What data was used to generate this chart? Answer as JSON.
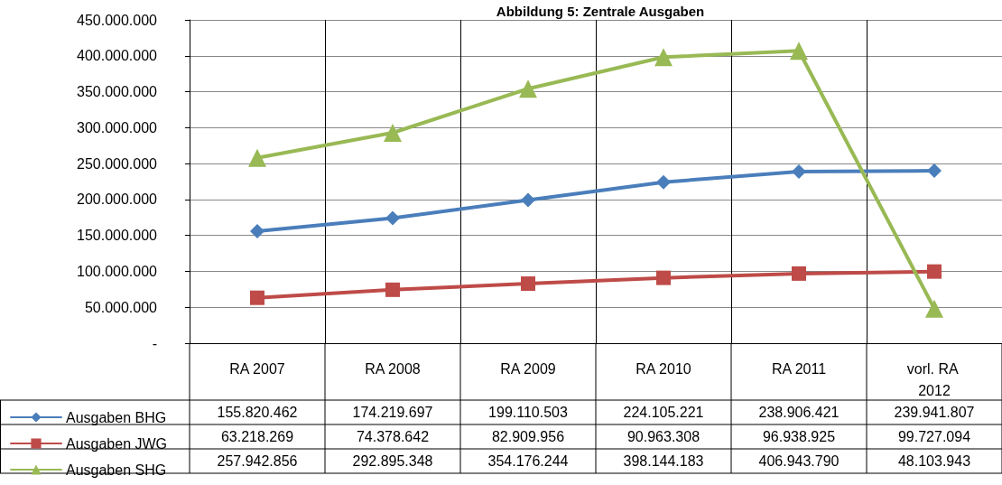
{
  "chart_data": {
    "type": "line",
    "title": "Abbildung 5: Zentrale Ausgaben",
    "categories": [
      "RA 2007",
      "RA 2008",
      "RA 2009",
      "RA 2010",
      "RA 2011",
      "vorl. RA 2012"
    ],
    "series": [
      {
        "name": "Ausgaben BHG",
        "color": "#4a7ebb",
        "marker": "diamond",
        "values": [
          155820462,
          174219697,
          199110503,
          224105221,
          238906421,
          239941807
        ],
        "value_labels": [
          "155.820.462",
          "174.219.697",
          "199.110.503",
          "224.105.221",
          "238.906.421",
          "239.941.807"
        ]
      },
      {
        "name": "Ausgaben JWG",
        "color": "#be4b48",
        "marker": "square",
        "values": [
          63218269,
          74378642,
          82909956,
          90963308,
          96938925,
          99727094
        ],
        "value_labels": [
          "63.218.269",
          "74.378.642",
          "82.909.956",
          "90.963.308",
          "96.938.925",
          "99.727.094"
        ]
      },
      {
        "name": "Ausgaben SHG",
        "color": "#98b954",
        "marker": "triangle",
        "values": [
          257942856,
          292895348,
          354176244,
          398144183,
          406943790,
          48103943
        ],
        "value_labels": [
          "257.942.856",
          "292.895.348",
          "354.176.244",
          "398.144.183",
          "406.943.790",
          "48.103.943"
        ]
      }
    ],
    "ylim": [
      0,
      450000000
    ],
    "yticks": [
      {
        "value": 0,
        "label": "-"
      },
      {
        "value": 50000000,
        "label": "50.000.000"
      },
      {
        "value": 100000000,
        "label": "100.000.000"
      },
      {
        "value": 150000000,
        "label": "150.000.000"
      },
      {
        "value": 200000000,
        "label": "200.000.000"
      },
      {
        "value": 250000000,
        "label": "250.000.000"
      },
      {
        "value": 300000000,
        "label": "300.000.000"
      },
      {
        "value": 350000000,
        "label": "350.000.000"
      },
      {
        "value": 400000000,
        "label": "400.000.000"
      },
      {
        "value": 450000000,
        "label": "450.000.000"
      }
    ],
    "grid": true,
    "legend": "bottom left"
  }
}
